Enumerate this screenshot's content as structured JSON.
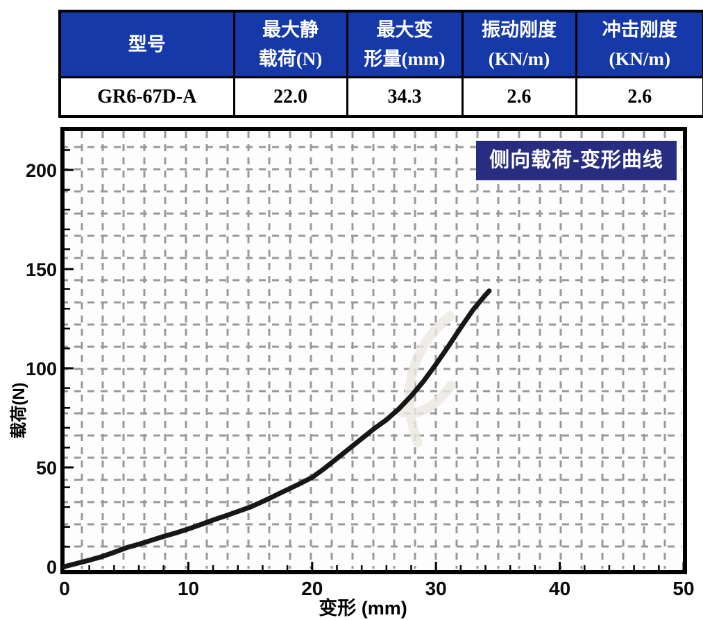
{
  "table": {
    "header_bg": "#1539A8",
    "header_text_color": "#FFFFFF",
    "columns": [
      {
        "id": "model",
        "line1": "型号",
        "line2": ""
      },
      {
        "id": "max_static_load",
        "line1": "最大静",
        "line2": "载荷(N)"
      },
      {
        "id": "max_deformation",
        "line1": "最大变",
        "line2": "形量(mm)"
      },
      {
        "id": "vibration_stiffness",
        "line1": "振动刚度",
        "line2": "(KN/m)"
      },
      {
        "id": "impact_stiffness",
        "line1": "冲击刚度",
        "line2": "(KN/m)"
      }
    ],
    "values": {
      "model": "GR6-67D-A",
      "max_static_load": "22.0",
      "max_deformation": "34.3",
      "vibration_stiffness": "2.6",
      "impact_stiffness": "2.6"
    }
  },
  "chart_data": {
    "type": "line",
    "title": "侧向载荷-变形曲线",
    "xlabel": "变形 (mm)",
    "ylabel": "载荷(N)",
    "xlim": [
      0,
      50
    ],
    "ylim": [
      0,
      220
    ],
    "xticks": [
      0,
      10,
      20,
      30,
      40,
      50
    ],
    "yticks": [
      0,
      50,
      100,
      150,
      200
    ],
    "grid": "dashed",
    "legend": "none",
    "title_bg": "#292D82",
    "curve_color": "#171717",
    "series": [
      {
        "name": "侧向载荷-变形",
        "points": [
          [
            0,
            0
          ],
          [
            1,
            1.6
          ],
          [
            2,
            3.2
          ],
          [
            3,
            5
          ],
          [
            4,
            7.2
          ],
          [
            5,
            9.5
          ],
          [
            6,
            11.3
          ],
          [
            7,
            13.2
          ],
          [
            8,
            15.2
          ],
          [
            9,
            17
          ],
          [
            10,
            19
          ],
          [
            11,
            21.2
          ],
          [
            12,
            23.5
          ],
          [
            13,
            25.6
          ],
          [
            14,
            27.8
          ],
          [
            15,
            30
          ],
          [
            16,
            32.8
          ],
          [
            17,
            35.8
          ],
          [
            18,
            38.8
          ],
          [
            19,
            41.8
          ],
          [
            20,
            45
          ],
          [
            21,
            49.5
          ],
          [
            22,
            54.5
          ],
          [
            23,
            59.5
          ],
          [
            24,
            64.5
          ],
          [
            25,
            69.5
          ],
          [
            26,
            74
          ],
          [
            27,
            79.5
          ],
          [
            28,
            86
          ],
          [
            29,
            93.5
          ],
          [
            30,
            102
          ],
          [
            31,
            111
          ],
          [
            32,
            120.5
          ],
          [
            33,
            129.5
          ],
          [
            34,
            137
          ],
          [
            34.3,
            139
          ]
        ]
      }
    ]
  }
}
